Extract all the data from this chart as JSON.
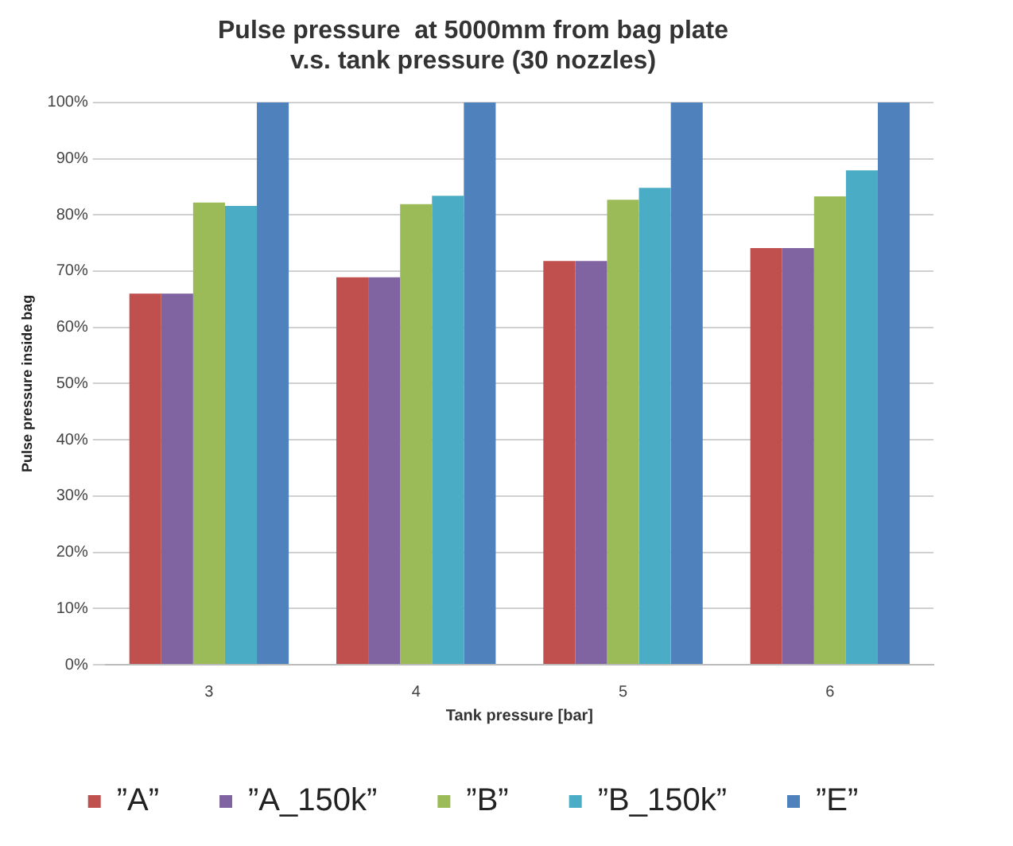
{
  "chart_data": {
    "type": "bar",
    "title": "Pulse pressure  at 5000mm from bag plate\nv.s. tank pressure (30 nozzles)",
    "xlabel": "Tank pressure [bar]",
    "ylabel": "Pulse pressure inside bag",
    "categories": [
      "3",
      "4",
      "5",
      "6"
    ],
    "series": [
      {
        "name": "”A”",
        "color": "#c0504d",
        "values": [
          66,
          68.9,
          71.8,
          74.1
        ]
      },
      {
        "name": "”A_150k”",
        "color": "#8064a2",
        "values": [
          66,
          68.9,
          71.8,
          74.1
        ]
      },
      {
        "name": "”B”",
        "color": "#9bbb59",
        "values": [
          82.2,
          81.9,
          82.7,
          83.3
        ]
      },
      {
        "name": "”B_150k”",
        "color": "#4bacc6",
        "values": [
          81.6,
          83.4,
          84.8,
          87.9
        ]
      },
      {
        "name": "”E”",
        "color": "#4f81bd",
        "values": [
          100,
          100,
          100,
          100
        ]
      }
    ],
    "ylim": [
      0,
      100
    ],
    "yticks": [
      {
        "value": 0,
        "label": "0%"
      },
      {
        "value": 10,
        "label": "10%"
      },
      {
        "value": 20,
        "label": "20%"
      },
      {
        "value": 30,
        "label": "30%"
      },
      {
        "value": 40,
        "label": "40%"
      },
      {
        "value": 50,
        "label": "50%"
      },
      {
        "value": 60,
        "label": "60%"
      },
      {
        "value": 70,
        "label": "70%"
      },
      {
        "value": 80,
        "label": "80%"
      },
      {
        "value": 90,
        "label": "90%"
      },
      {
        "value": 100,
        "label": "100%"
      }
    ],
    "grid": "y",
    "legend": "bottom"
  }
}
